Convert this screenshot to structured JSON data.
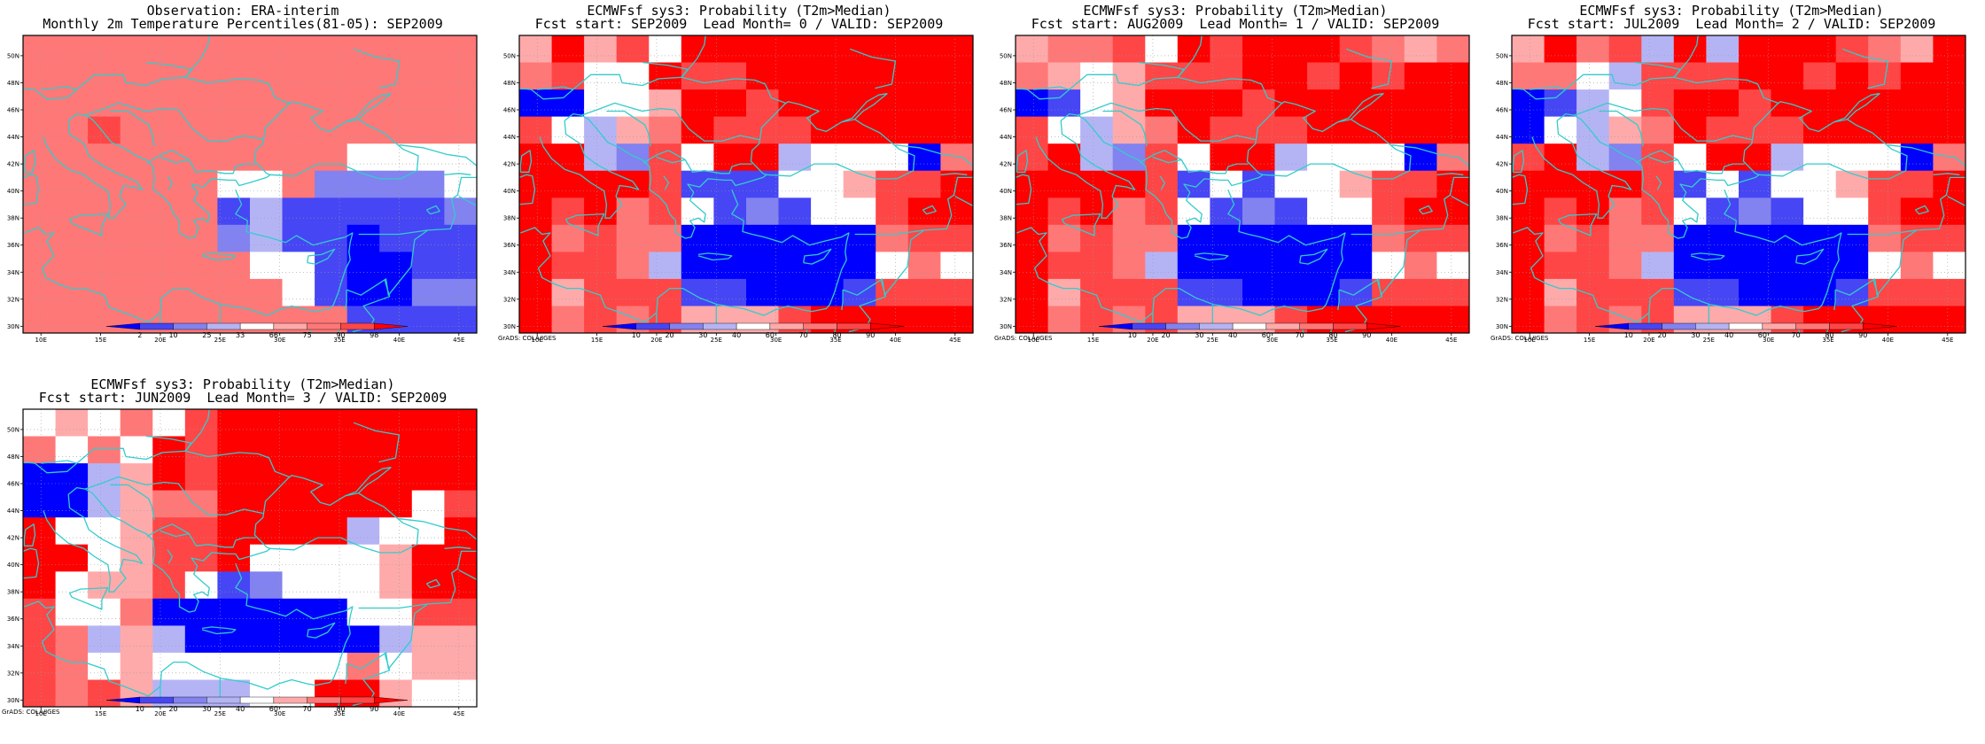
{
  "palette": {
    "obs": [
      "#0000ff",
      "#4646f5",
      "#8282f0",
      "#b4b4f5",
      "#ffffff",
      "#ffaaaa",
      "#ff7878",
      "#ff4646",
      "#ff0000"
    ],
    "prob": [
      "#0000ff",
      "#4646f5",
      "#8282f0",
      "#b4b4f5",
      "#ffffff",
      "#ffaaaa",
      "#ff7878",
      "#ff4646",
      "#ff0000"
    ],
    "coast": "#33cccc",
    "grid": "#999999"
  },
  "axes": {
    "lon_labels": [
      "10E",
      "15E",
      "20E",
      "25E",
      "30E",
      "35E",
      "40E",
      "45E"
    ],
    "lat_labels": [
      "30N",
      "32N",
      "34N",
      "36N",
      "38N",
      "40N",
      "42N",
      "44N",
      "46N",
      "48N",
      "50N"
    ],
    "lon_range": [
      8.5,
      46.5
    ],
    "lat_range": [
      29.5,
      51.5
    ]
  },
  "panels": [
    {
      "id": "obs",
      "title1": "Observation: ERA-interim",
      "title2": "Monthly 2m Temperature Percentiles(81-05): SEP2009",
      "legend": [
        "2",
        "10",
        "25",
        "33",
        "66",
        "75",
        "90",
        "98"
      ],
      "credit": "",
      "grid": [
        "66666666666666",
        "66666666666666",
        "66666666666666",
        "66766666666666",
        "66666666664444",
        "66666644622224",
        "66666613111112",
        "66666623110111",
        "66666664410011",
        "66666666410022",
        "66666666661111"
      ]
    },
    {
      "id": "f0",
      "title1": "ECMWFsf sys3: Probability (T2m>Median)",
      "title2": "Fcst start: SEP2009  Lead Month= 0 / VALID: SEP2009",
      "legend": [
        "10",
        "20",
        "30",
        "40",
        "60",
        "70",
        "80",
        "90"
      ],
      "credit": "GrADS: COLA/IGES",
      "grid": [
        "58574888888888",
        "67448778888888",
        "00445887888888",
        "74356877788888",
        "88327488344406",
        "88887111445778",
        "87867412144788",
        "86766000000677",
        "87763000000464",
        "85777110001777",
        "86767555788888"
      ]
    },
    {
      "id": "f1",
      "title1": "ECMWFsf sys3: Probability (T2m>Median)",
      "title2": "Fcst start: AUG2009  Lead Month= 1 / VALID: SEP2009",
      "legend": [
        "10",
        "20",
        "30",
        "40",
        "60",
        "70",
        "80",
        "90"
      ],
      "credit": "GrADS: COLA/IGES",
      "grid": [
        "56674878887656",
        "65457778878788",
        "01458887888888",
        "74356877788888",
        "78327488344406",
        "88887141445778",
        "87867412144788",
        "86766000000677",
        "87763000000464",
        "85777110001777",
        "86767555788888"
      ]
    },
    {
      "id": "f2",
      "title1": "ECMWFsf sys3: Probability (T2m>Median)",
      "title2": "Fcst start: JUL2009  Lead Month= 2 / VALID: SEP2009",
      "legend": [
        "10",
        "20",
        "30",
        "40",
        "60",
        "70",
        "80",
        "90"
      ],
      "credit": "GrADS: COLA/IGES",
      "grid": [
        "58673838887658",
        "66437778878788",
        "01347887888888",
        "04356877788888",
        "78327488344406",
        "88887141445778",
        "87867412144788",
        "86766000000677",
        "87763000000464",
        "85777110001777",
        "86767555788888"
      ]
    },
    {
      "id": "f3",
      "title1": "ECMWFsf sys3: Probability (T2m>Median)",
      "title2": "Fcst start: JUN2009  Lead Month= 3 / VALID: SEP2009",
      "legend": [
        "10",
        "20",
        "30",
        "40",
        "60",
        "70",
        "80",
        "90"
      ],
      "credit": "GrADS: COLA/IGES",
      "grid": [
        "45464788888888",
        "64648788888888",
        "00358788888888",
        "00356688888847",
        "84457788883448",
        "88457784444588",
        "84557412444588",
        "74460000004477",
        "76353000000355",
        "76454444446455",
        "76753334488544"
      ]
    }
  ]
}
